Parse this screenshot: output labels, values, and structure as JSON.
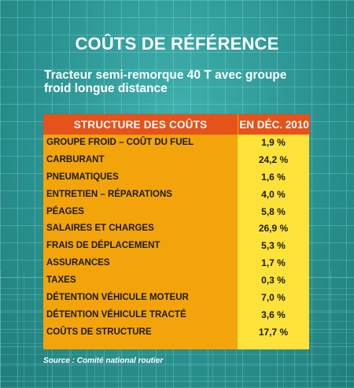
{
  "title": "COÛTS DE RÉFÉRENCE",
  "subtitle_line1": "Tracteur semi-remorque 40 T avec groupe",
  "subtitle_line2": "froid longue distance",
  "table": {
    "header_left": "STRUCTURE  DES COÛTS",
    "header_right": "EN DÉC. 2010",
    "rows": [
      {
        "label": "GROUPE FROID – COÛT DU FUEL",
        "value": "1,9 %"
      },
      {
        "label": "CARBURANT",
        "value": "24,2 %"
      },
      {
        "label": "PNEUMATIQUES",
        "value": "1,6 %"
      },
      {
        "label": "ENTRETIEN – RÉPARATIONS",
        "value": "4,0 %"
      },
      {
        "label": "PÉAGES",
        "value": "5,8 %"
      },
      {
        "label": "SALAIRES ET CHARGES",
        "value": "26,9 %"
      },
      {
        "label": "FRAIS DE DÉPLACEMENT",
        "value": "5,3 %"
      },
      {
        "label": "ASSURANCES",
        "value": "1,7 %"
      },
      {
        "label": "TAXES",
        "value": "0,3 %"
      },
      {
        "label": "DÉTENTION VÉHICULE MOTEUR",
        "value": "7,0 %"
      },
      {
        "label": "DÉTENTION VÉHICULE TRACTÉ",
        "value": "3,6 %"
      },
      {
        "label": "COÛTS DE STRUCTURE",
        "value": "17,7 %"
      }
    ]
  },
  "source": "Source : Comité national routier",
  "colors": {
    "background": "#2f9a98",
    "header": "#e5521a",
    "table_orange": "#f2a40a",
    "table_yellow": "#fde23a"
  }
}
